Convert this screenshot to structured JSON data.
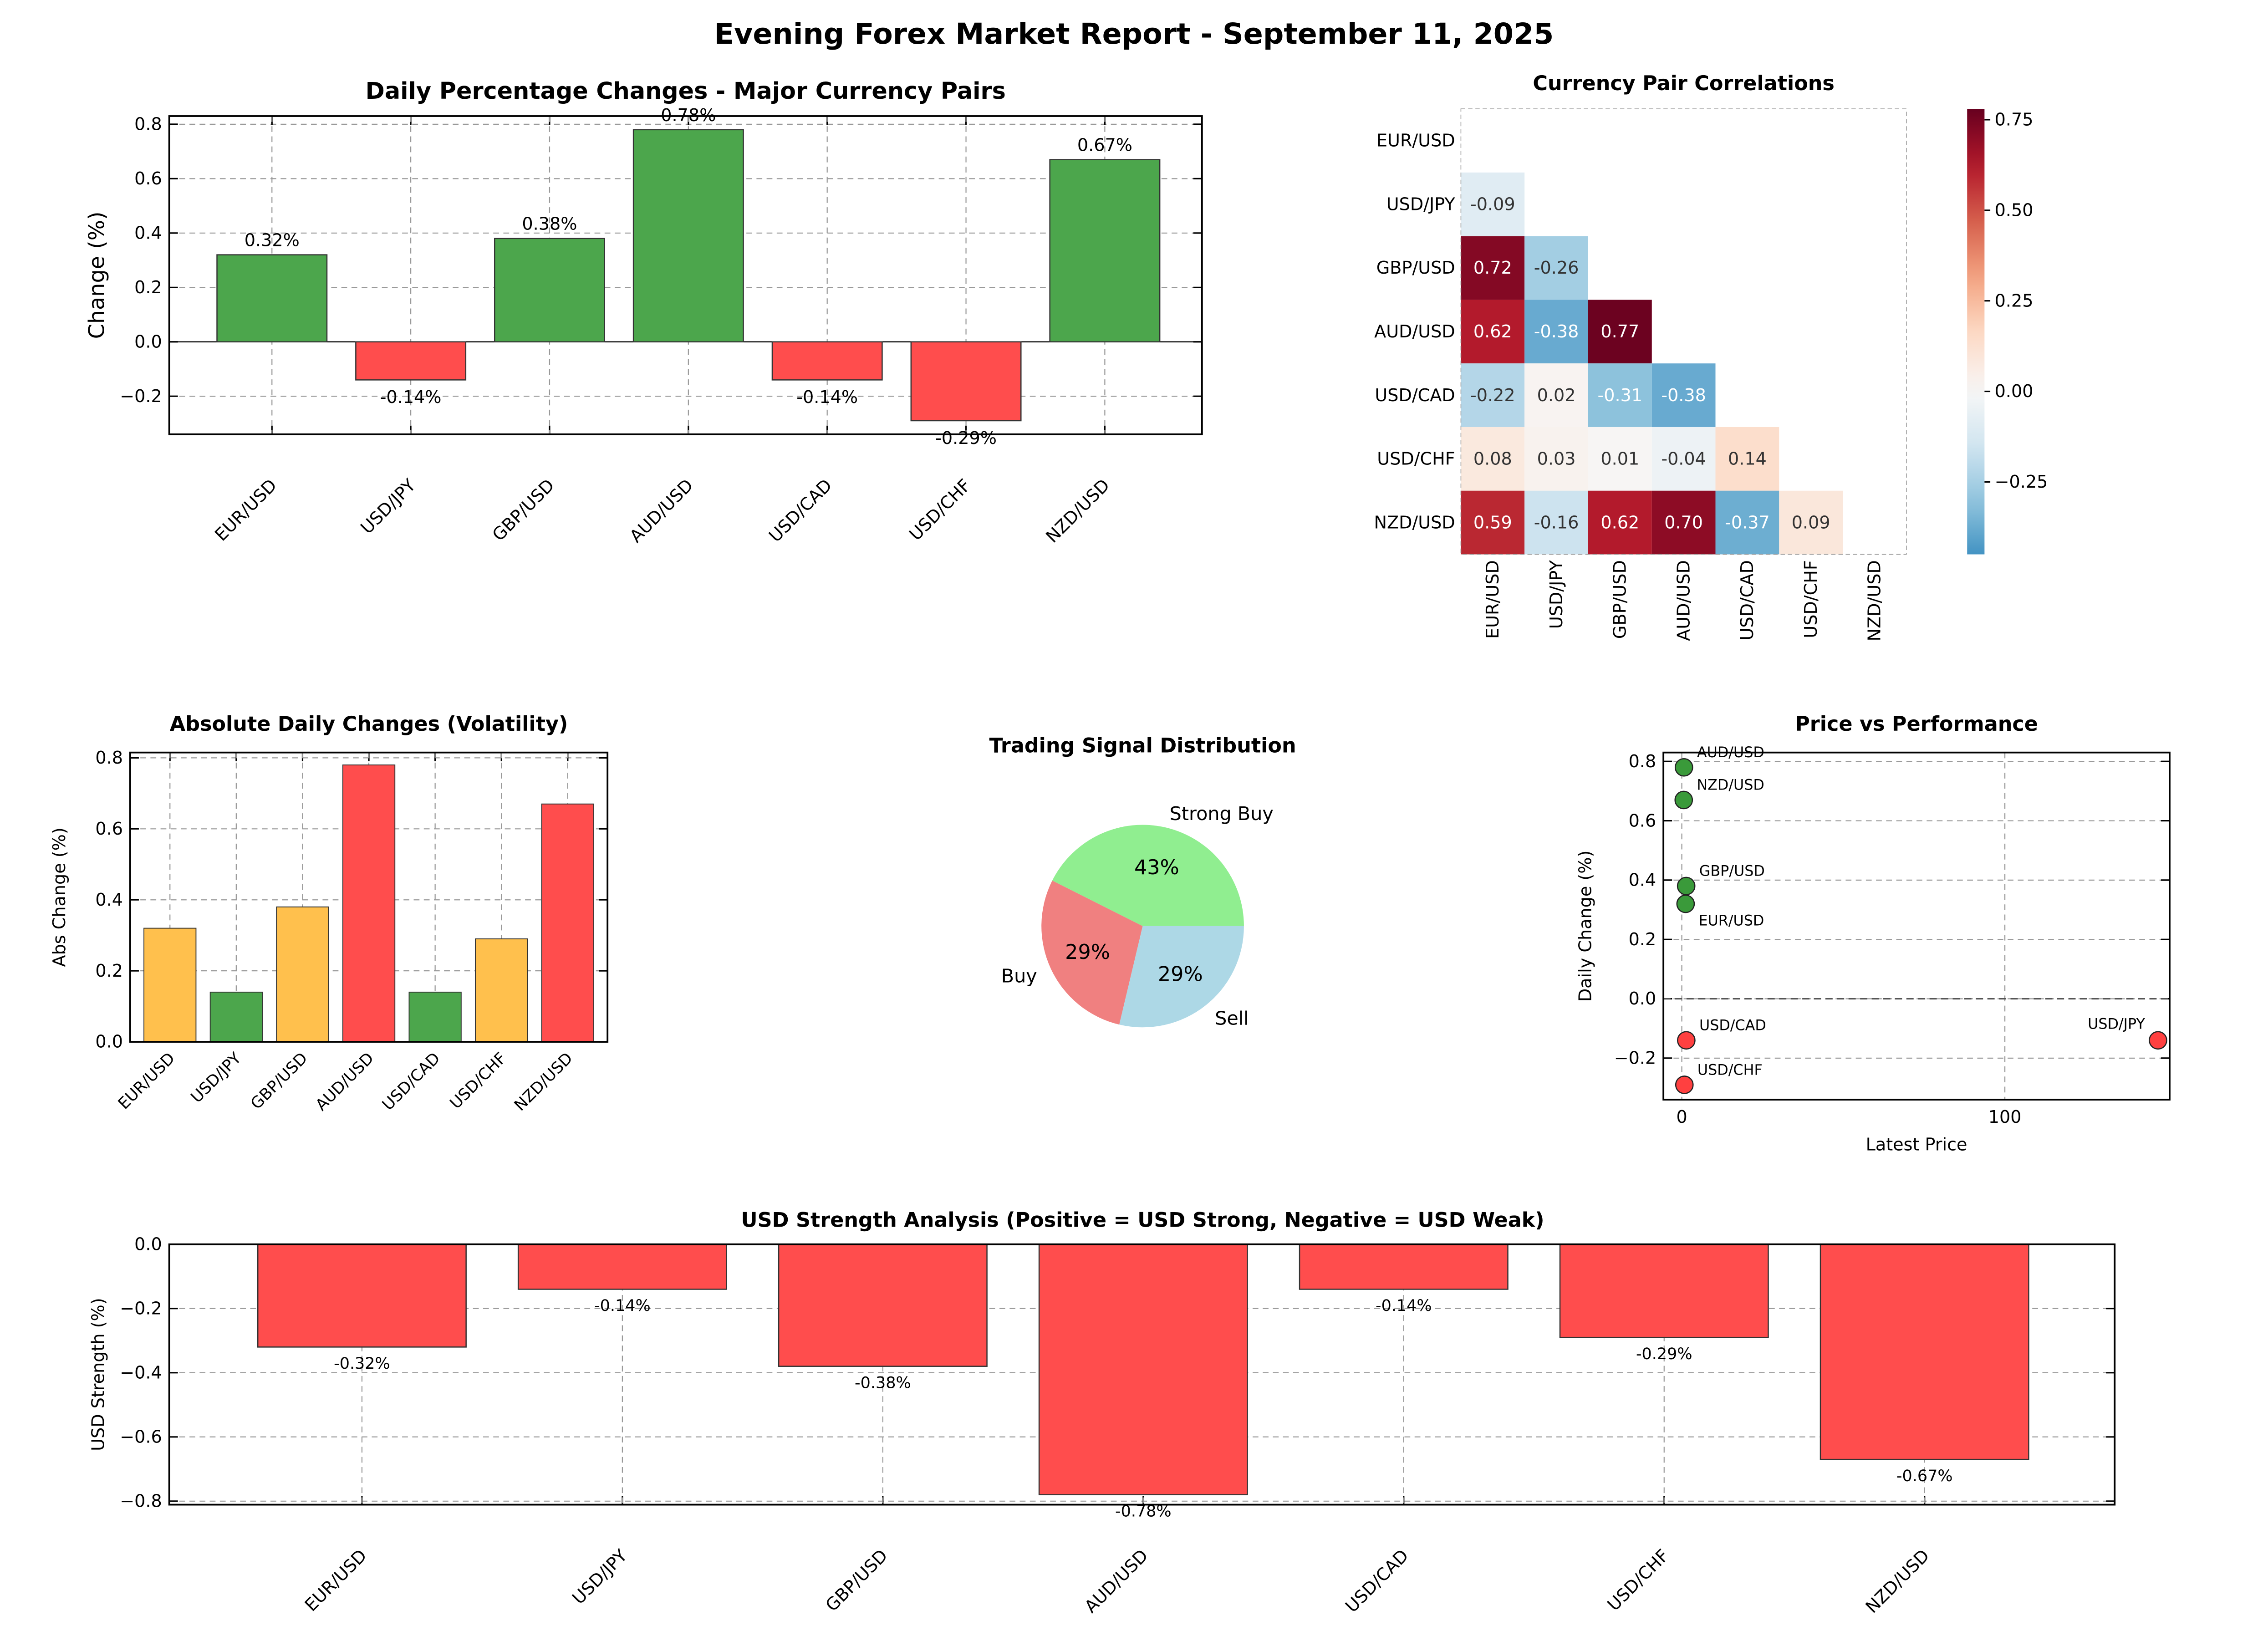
{
  "title": "Evening Forex Market Report - September 11, 2025",
  "chart_data": [
    {
      "id": "daily",
      "type": "bar",
      "title": "Daily Percentage Changes - Major Currency Pairs",
      "xlabel": "",
      "ylabel": "Change (%)",
      "categories": [
        "EUR/USD",
        "USD/JPY",
        "GBP/USD",
        "AUD/USD",
        "USD/CAD",
        "USD/CHF",
        "NZD/USD"
      ],
      "values": [
        0.32,
        -0.14,
        0.38,
        0.78,
        -0.14,
        -0.29,
        0.67
      ],
      "value_labels": [
        "0.32%",
        "-0.14%",
        "0.38%",
        "0.78%",
        "-0.14%",
        "-0.29%",
        "0.67%"
      ],
      "colors": {
        "positive": "#4ca64c",
        "negative": "#ff4d4d"
      },
      "ylim": [
        -0.34,
        0.83
      ],
      "yticks": [
        -0.2,
        0,
        0.2,
        0.4,
        0.6,
        0.8
      ],
      "ytick_labels": [
        "−0.2",
        "0.0",
        "0.2",
        "0.4",
        "0.6",
        "0.8"
      ],
      "grid": true
    },
    {
      "id": "volatility",
      "type": "bar",
      "title": "Absolute Daily Changes (Volatility)",
      "ylabel": "Abs Change (%)",
      "categories": [
        "EUR/USD",
        "USD/JPY",
        "GBP/USD",
        "AUD/USD",
        "USD/CAD",
        "USD/CHF",
        "NZD/USD"
      ],
      "values": [
        0.32,
        0.14,
        0.38,
        0.78,
        0.14,
        0.29,
        0.67
      ],
      "bar_colors": [
        "#ffc04d",
        "#4ca64c",
        "#ffc04d",
        "#ff4d4d",
        "#4ca64c",
        "#ffc04d",
        "#ff4d4d"
      ],
      "ylim": [
        0,
        0.815
      ],
      "yticks": [
        0,
        0.2,
        0.4,
        0.6,
        0.8
      ],
      "ytick_labels": [
        "0.0",
        "0.2",
        "0.4",
        "0.6",
        "0.8"
      ],
      "grid": true
    },
    {
      "id": "signals",
      "type": "pie",
      "title": "Trading Signal Distribution",
      "labels": [
        "Strong Buy",
        "Buy",
        "Sell"
      ],
      "values": [
        43,
        29,
        29
      ],
      "pct_labels": [
        "43%",
        "29%",
        "29%"
      ],
      "colors": [
        "#90ee90",
        "#f08080",
        "#add8e6"
      ]
    },
    {
      "id": "correlations",
      "type": "heatmap",
      "title": "Currency Pair Correlations",
      "labels": [
        "EUR/USD",
        "USD/JPY",
        "GBP/USD",
        "AUD/USD",
        "USD/CAD",
        "USD/CHF",
        "NZD/USD"
      ],
      "lower_triangle": [
        [],
        [
          -0.09
        ],
        [
          0.72,
          -0.26
        ],
        [
          0.62,
          -0.38,
          0.77
        ],
        [
          -0.22,
          0.02,
          -0.31,
          -0.38
        ],
        [
          0.08,
          0.03,
          0.01,
          -0.04,
          0.14
        ],
        [
          0.59,
          -0.16,
          0.62,
          0.7,
          -0.37,
          0.09
        ]
      ],
      "cell_labels": [
        [],
        [
          "-0.09"
        ],
        [
          "0.72",
          "-0.26"
        ],
        [
          "0.62",
          "-0.38",
          "0.77"
        ],
        [
          "-0.22",
          "0.02",
          "-0.31",
          "-0.38"
        ],
        [
          "0.08",
          "0.03",
          "0.01",
          "-0.04",
          "0.14"
        ],
        [
          "0.59",
          "-0.16",
          "0.62",
          "0.70",
          "-0.37",
          "0.09"
        ]
      ],
      "colorbar_range": [
        -0.45,
        0.78
      ],
      "colorbar_ticks": [
        -0.25,
        0,
        0.25,
        0.5,
        0.75
      ],
      "colorbar_tick_labels": [
        "−0.25",
        "0.00",
        "0.25",
        "0.50",
        "0.75"
      ]
    },
    {
      "id": "price_perf",
      "type": "scatter",
      "title": "Price vs Performance",
      "xlabel": "Latest Price",
      "ylabel": "Daily Change (%)",
      "points": [
        {
          "label": "EUR/USD",
          "x": 1.17,
          "y": 0.32
        },
        {
          "label": "USD/JPY",
          "x": 147.4,
          "y": -0.14
        },
        {
          "label": "GBP/USD",
          "x": 1.35,
          "y": 0.38
        },
        {
          "label": "AUD/USD",
          "x": 0.66,
          "y": 0.78
        },
        {
          "label": "USD/CAD",
          "x": 1.38,
          "y": -0.14
        },
        {
          "label": "USD/CHF",
          "x": 0.8,
          "y": -0.29
        },
        {
          "label": "NZD/USD",
          "x": 0.59,
          "y": 0.67
        }
      ],
      "xlim": [
        -5.7,
        151
      ],
      "ylim": [
        -0.34,
        0.83
      ],
      "xticks": [
        0,
        100
      ],
      "xtick_labels": [
        "0",
        "100"
      ],
      "yticks": [
        -0.2,
        0,
        0.2,
        0.4,
        0.6,
        0.8
      ],
      "ytick_labels": [
        "−0.2",
        "0.0",
        "0.2",
        "0.4",
        "0.6",
        "0.8"
      ]
    },
    {
      "id": "usd_strength",
      "type": "bar",
      "title": "USD Strength Analysis (Positive = USD Strong, Negative = USD Weak)",
      "ylabel": "USD Strength (%)",
      "categories": [
        "EUR/USD",
        "USD/JPY",
        "GBP/USD",
        "AUD/USD",
        "USD/CAD",
        "USD/CHF",
        "NZD/USD"
      ],
      "values": [
        -0.32,
        -0.14,
        -0.38,
        -0.78,
        -0.14,
        -0.29,
        -0.67
      ],
      "value_labels": [
        "-0.32%",
        "-0.14%",
        "-0.38%",
        "-0.78%",
        "-0.14%",
        "-0.29%",
        "-0.67%"
      ],
      "colors": {
        "positive": "#4ca64c",
        "negative": "#ff4d4d"
      },
      "ylim": [
        -0.811,
        0
      ],
      "yticks": [
        -0.8,
        -0.6,
        -0.4,
        -0.2,
        0
      ],
      "ytick_labels": [
        "−0.8",
        "−0.6",
        "−0.4",
        "−0.2",
        "0.0"
      ]
    }
  ]
}
